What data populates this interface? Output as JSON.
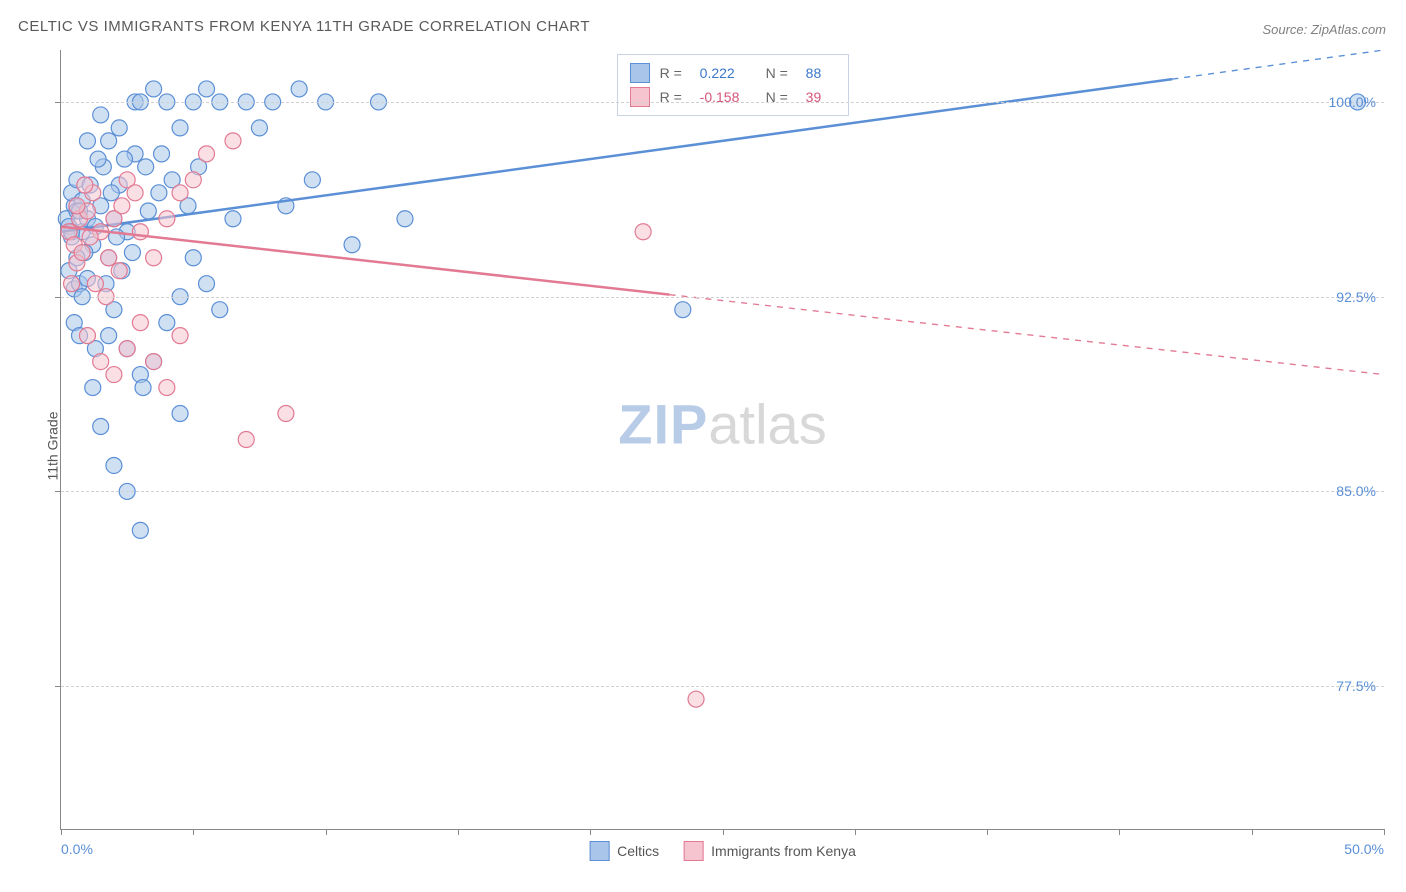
{
  "title": "CELTIC VS IMMIGRANTS FROM KENYA 11TH GRADE CORRELATION CHART",
  "source": "Source: ZipAtlas.com",
  "y_axis_label": "11th Grade",
  "watermark": {
    "part1": "ZIP",
    "part2": "atlas"
  },
  "chart": {
    "type": "scatter",
    "background_color": "#ffffff",
    "grid_color": "#d0d0d0",
    "axis_color": "#888888",
    "xlim": [
      0,
      50
    ],
    "ylim": [
      72,
      102
    ],
    "x_ticks": [
      0,
      5,
      10,
      15,
      20,
      25,
      30,
      35,
      40,
      45,
      50
    ],
    "x_tick_labels": {
      "0": "0.0%",
      "50": "50.0%"
    },
    "y_gridlines": [
      77.5,
      85.0,
      92.5,
      100.0
    ],
    "y_tick_labels": {
      "77.5": "77.5%",
      "85.0": "85.0%",
      "92.5": "92.5%",
      "100.0": "100.0%"
    },
    "marker_radius": 8,
    "marker_opacity": 0.55,
    "marker_stroke_width": 1.2,
    "trend_line_width": 2.5,
    "series": [
      {
        "id": "celtics",
        "label": "Celtics",
        "fill_color": "#a9c6ea",
        "stroke_color": "#5b8fd6",
        "r_value": "0.222",
        "n_value": "88",
        "r_color": "#3b78cc",
        "trend": {
          "x1": 0,
          "y1": 95.0,
          "x2": 50,
          "y2": 102.0,
          "solid_until_x": 42
        },
        "points": [
          [
            0.2,
            95.5
          ],
          [
            0.3,
            95.2
          ],
          [
            0.5,
            96.0
          ],
          [
            0.4,
            94.8
          ],
          [
            0.6,
            95.8
          ],
          [
            0.8,
            95.0
          ],
          [
            0.3,
            93.5
          ],
          [
            0.5,
            92.8
          ],
          [
            0.7,
            93.0
          ],
          [
            1.0,
            95.5
          ],
          [
            0.4,
            96.5
          ],
          [
            0.6,
            97.0
          ],
          [
            0.8,
            96.2
          ],
          [
            1.2,
            94.5
          ],
          [
            1.0,
            93.2
          ],
          [
            0.5,
            91.5
          ],
          [
            0.7,
            91.0
          ],
          [
            1.5,
            96.0
          ],
          [
            1.3,
            95.2
          ],
          [
            1.8,
            94.0
          ],
          [
            2.0,
            95.5
          ],
          [
            1.6,
            97.5
          ],
          [
            2.2,
            96.8
          ],
          [
            2.5,
            95.0
          ],
          [
            2.0,
            92.0
          ],
          [
            1.8,
            91.0
          ],
          [
            2.8,
            100.0
          ],
          [
            3.0,
            100.0
          ],
          [
            3.5,
            100.5
          ],
          [
            4.0,
            100.0
          ],
          [
            4.5,
            99.0
          ],
          [
            5.0,
            100.0
          ],
          [
            5.5,
            100.5
          ],
          [
            3.2,
            97.5
          ],
          [
            3.8,
            98.0
          ],
          [
            4.2,
            97.0
          ],
          [
            2.5,
            90.5
          ],
          [
            3.0,
            89.5
          ],
          [
            3.5,
            90.0
          ],
          [
            1.2,
            89.0
          ],
          [
            1.5,
            87.5
          ],
          [
            2.0,
            86.0
          ],
          [
            2.5,
            85.0
          ],
          [
            3.0,
            83.5
          ],
          [
            4.5,
            88.0
          ],
          [
            1.8,
            98.5
          ],
          [
            2.2,
            99.0
          ],
          [
            2.8,
            98.0
          ],
          [
            1.0,
            98.5
          ],
          [
            1.5,
            99.5
          ],
          [
            6.0,
            100.0
          ],
          [
            6.5,
            95.5
          ],
          [
            7.0,
            100.0
          ],
          [
            7.5,
            99.0
          ],
          [
            8.0,
            100.0
          ],
          [
            9.0,
            100.5
          ],
          [
            10.0,
            100.0
          ],
          [
            12.0,
            100.0
          ],
          [
            8.5,
            96.0
          ],
          [
            9.5,
            97.0
          ],
          [
            11.0,
            94.5
          ],
          [
            13.0,
            95.5
          ],
          [
            5.5,
            93.0
          ],
          [
            6.0,
            92.0
          ],
          [
            4.0,
            91.5
          ],
          [
            4.5,
            92.5
          ],
          [
            5.0,
            94.0
          ],
          [
            23.5,
            92.0
          ],
          [
            49.0,
            100.0
          ],
          [
            0.9,
            94.2
          ],
          [
            1.1,
            96.8
          ],
          [
            1.4,
            97.8
          ],
          [
            0.6,
            94.0
          ],
          [
            0.8,
            92.5
          ],
          [
            2.3,
            93.5
          ],
          [
            2.7,
            94.2
          ],
          [
            3.3,
            95.8
          ],
          [
            3.7,
            96.5
          ],
          [
            1.7,
            93.0
          ],
          [
            2.1,
            94.8
          ],
          [
            0.4,
            95.0
          ],
          [
            0.7,
            95.8
          ],
          [
            1.9,
            96.5
          ],
          [
            2.4,
            97.8
          ],
          [
            3.1,
            89.0
          ],
          [
            1.3,
            90.5
          ],
          [
            4.8,
            96.0
          ],
          [
            5.2,
            97.5
          ]
        ]
      },
      {
        "id": "kenya",
        "label": "Immigrants from Kenya",
        "fill_color": "#f5c4ce",
        "stroke_color": "#e27a93",
        "r_value": "-0.158",
        "n_value": "39",
        "r_color": "#d6567a",
        "trend": {
          "x1": 0,
          "y1": 95.2,
          "x2": 50,
          "y2": 89.5,
          "solid_until_x": 23
        },
        "points": [
          [
            0.3,
            95.0
          ],
          [
            0.5,
            94.5
          ],
          [
            0.7,
            95.5
          ],
          [
            0.4,
            93.0
          ],
          [
            0.6,
            93.8
          ],
          [
            0.8,
            94.2
          ],
          [
            1.0,
            95.8
          ],
          [
            1.2,
            96.5
          ],
          [
            1.5,
            95.0
          ],
          [
            1.8,
            94.0
          ],
          [
            2.0,
            95.5
          ],
          [
            2.3,
            96.0
          ],
          [
            2.5,
            97.0
          ],
          [
            2.8,
            96.5
          ],
          [
            3.0,
            95.0
          ],
          [
            3.5,
            94.0
          ],
          [
            4.0,
            95.5
          ],
          [
            4.5,
            96.5
          ],
          [
            1.0,
            91.0
          ],
          [
            1.5,
            90.0
          ],
          [
            2.0,
            89.5
          ],
          [
            2.5,
            90.5
          ],
          [
            3.0,
            91.5
          ],
          [
            3.5,
            90.0
          ],
          [
            4.0,
            89.0
          ],
          [
            4.5,
            91.0
          ],
          [
            1.3,
            93.0
          ],
          [
            1.7,
            92.5
          ],
          [
            2.2,
            93.5
          ],
          [
            6.5,
            98.5
          ],
          [
            7.0,
            87.0
          ],
          [
            8.5,
            88.0
          ],
          [
            5.0,
            97.0
          ],
          [
            5.5,
            98.0
          ],
          [
            22.0,
            95.0
          ],
          [
            24.0,
            77.0
          ],
          [
            0.6,
            96.0
          ],
          [
            0.9,
            96.8
          ],
          [
            1.1,
            94.8
          ]
        ]
      }
    ]
  },
  "legend_labels": {
    "r_prefix": "R =",
    "n_prefix": "N ="
  }
}
